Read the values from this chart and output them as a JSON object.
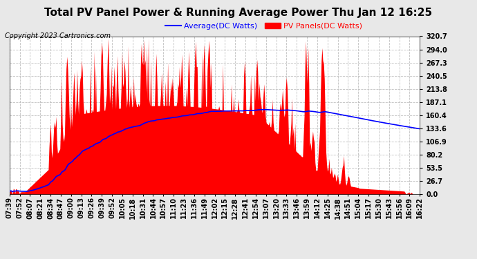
{
  "title": "Total PV Panel Power & Running Average Power Thu Jan 12 16:25",
  "copyright": "Copyright 2023 Cartronics.com",
  "legend_avg": "Average(DC Watts)",
  "legend_pv": "PV Panels(DC Watts)",
  "y_ticks": [
    0.0,
    26.7,
    53.5,
    80.2,
    106.9,
    133.6,
    160.4,
    187.1,
    213.8,
    240.5,
    267.3,
    294.0,
    320.7
  ],
  "y_max": 320.7,
  "x_labels": [
    "07:39",
    "07:52",
    "08:07",
    "08:21",
    "08:34",
    "08:47",
    "09:00",
    "09:13",
    "09:26",
    "09:39",
    "09:52",
    "10:05",
    "10:18",
    "10:31",
    "10:44",
    "10:57",
    "11:10",
    "11:23",
    "11:36",
    "11:49",
    "12:02",
    "12:15",
    "12:28",
    "12:41",
    "12:54",
    "13:07",
    "13:20",
    "13:33",
    "13:46",
    "13:59",
    "14:12",
    "14:25",
    "14:38",
    "14:51",
    "15:04",
    "15:17",
    "15:30",
    "15:43",
    "15:56",
    "16:09",
    "16:22"
  ],
  "plot_bg_color": "#ffffff",
  "fig_bg_color": "#e8e8e8",
  "panel_color": "#ff0000",
  "avg_color": "#0000ff",
  "grid_color": "#c0c0c0",
  "title_color": "#000000",
  "copyright_color": "#000000",
  "legend_avg_color": "#0000ff",
  "legend_pv_color": "#ff0000",
  "title_fontsize": 11,
  "copyright_fontsize": 7,
  "legend_fontsize": 8,
  "axis_fontsize": 7,
  "n_points": 530
}
